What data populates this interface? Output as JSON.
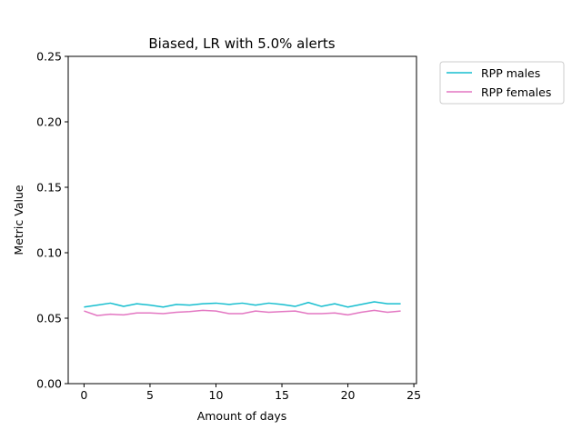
{
  "chart_data": {
    "type": "line",
    "title": "Biased, LR with 5.0% alerts",
    "xlabel": "Amount of days",
    "ylabel": "Metric Value",
    "xlim": [
      -1.2,
      25.2
    ],
    "ylim": [
      0,
      0.25
    ],
    "xticks": [
      0,
      5,
      10,
      15,
      20,
      25
    ],
    "xtick_labels": [
      "0",
      "5",
      "10",
      "15",
      "20",
      "25"
    ],
    "yticks": [
      0.0,
      0.05,
      0.1,
      0.15,
      0.2,
      0.25
    ],
    "ytick_labels": [
      "0.00",
      "0.05",
      "0.10",
      "0.15",
      "0.20",
      "0.25"
    ],
    "grid": false,
    "legend_position": "outside upper right",
    "x": [
      0,
      1,
      2,
      3,
      4,
      5,
      6,
      7,
      8,
      9,
      10,
      11,
      12,
      13,
      14,
      15,
      16,
      17,
      18,
      19,
      20,
      21,
      22,
      23,
      24
    ],
    "series": [
      {
        "name": "RPP males",
        "color": "#17becf",
        "values": [
          0.0585,
          0.06,
          0.0615,
          0.059,
          0.061,
          0.06,
          0.0585,
          0.0605,
          0.06,
          0.061,
          0.0615,
          0.0605,
          0.0615,
          0.06,
          0.0615,
          0.0605,
          0.059,
          0.062,
          0.059,
          0.061,
          0.0585,
          0.0605,
          0.0625,
          0.061,
          0.061
        ]
      },
      {
        "name": "RPP females",
        "color": "#e377c2",
        "values": [
          0.0555,
          0.052,
          0.053,
          0.0525,
          0.054,
          0.054,
          0.0535,
          0.0545,
          0.055,
          0.056,
          0.0555,
          0.0535,
          0.0535,
          0.0555,
          0.0545,
          0.055,
          0.0555,
          0.0535,
          0.0535,
          0.054,
          0.0525,
          0.0545,
          0.056,
          0.0545,
          0.0555
        ]
      }
    ]
  }
}
